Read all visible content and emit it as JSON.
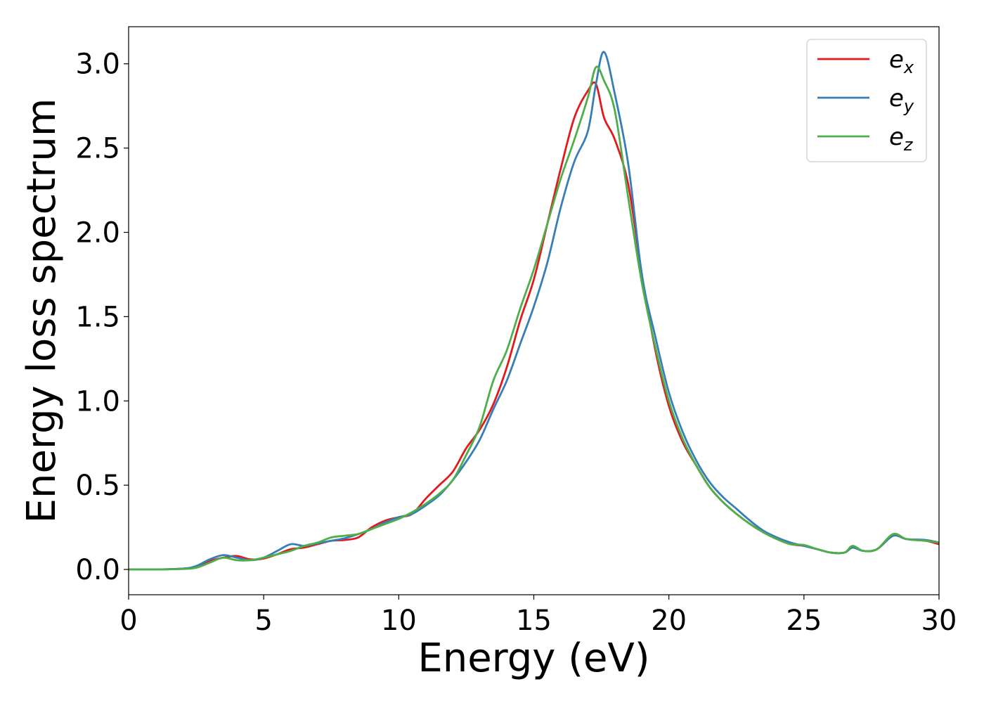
{
  "chart_data": {
    "type": "line",
    "title": "",
    "xlabel": "Energy (eV)",
    "ylabel": "Energy loss spectrum",
    "xlim": [
      0,
      30
    ],
    "ylim": [
      -0.15,
      3.22
    ],
    "xticks": [
      0,
      5,
      10,
      15,
      20,
      25,
      30
    ],
    "xtick_labels": [
      "0",
      "5",
      "10",
      "15",
      "20",
      "25",
      "30"
    ],
    "yticks": [
      0.0,
      0.5,
      1.0,
      1.5,
      2.0,
      2.5,
      3.0
    ],
    "ytick_labels": [
      "0.0",
      "0.5",
      "1.0",
      "1.5",
      "2.0",
      "2.5",
      "3.0"
    ],
    "grid": false,
    "legend_position": "top-right",
    "series": [
      {
        "name": "e_x",
        "label_base": "e",
        "label_sub": "x",
        "color": "#e31a1c",
        "points": [
          [
            0,
            0
          ],
          [
            1,
            0.0
          ],
          [
            2,
            0.005
          ],
          [
            2.5,
            0.015
          ],
          [
            3,
            0.05
          ],
          [
            3.5,
            0.07
          ],
          [
            4,
            0.08
          ],
          [
            4.5,
            0.06
          ],
          [
            5,
            0.065
          ],
          [
            5.5,
            0.09
          ],
          [
            6,
            0.12
          ],
          [
            6.5,
            0.13
          ],
          [
            7,
            0.15
          ],
          [
            7.5,
            0.17
          ],
          [
            8,
            0.175
          ],
          [
            8.5,
            0.19
          ],
          [
            9,
            0.25
          ],
          [
            9.5,
            0.29
          ],
          [
            10,
            0.31
          ],
          [
            10.5,
            0.33
          ],
          [
            11,
            0.42
          ],
          [
            11.5,
            0.5
          ],
          [
            12,
            0.58
          ],
          [
            12.5,
            0.72
          ],
          [
            13,
            0.83
          ],
          [
            13.5,
            0.98
          ],
          [
            14,
            1.2
          ],
          [
            14.5,
            1.48
          ],
          [
            15,
            1.72
          ],
          [
            15.5,
            2.05
          ],
          [
            16,
            2.38
          ],
          [
            16.5,
            2.68
          ],
          [
            17,
            2.84
          ],
          [
            17.3,
            2.88
          ],
          [
            17.6,
            2.68
          ],
          [
            18,
            2.55
          ],
          [
            18.5,
            2.28
          ],
          [
            19,
            1.75
          ],
          [
            19.5,
            1.3
          ],
          [
            20,
            0.97
          ],
          [
            20.5,
            0.76
          ],
          [
            21,
            0.62
          ],
          [
            21.5,
            0.49
          ],
          [
            22,
            0.4
          ],
          [
            22.5,
            0.33
          ],
          [
            23,
            0.27
          ],
          [
            23.5,
            0.22
          ],
          [
            24,
            0.18
          ],
          [
            24.5,
            0.15
          ],
          [
            25,
            0.14
          ],
          [
            25.5,
            0.12
          ],
          [
            26,
            0.1
          ],
          [
            26.5,
            0.1
          ],
          [
            26.8,
            0.13
          ],
          [
            27.2,
            0.11
          ],
          [
            27.7,
            0.12
          ],
          [
            28.3,
            0.2
          ],
          [
            28.8,
            0.18
          ],
          [
            29.5,
            0.17
          ],
          [
            30,
            0.15
          ]
        ]
      },
      {
        "name": "e_y",
        "label_base": "e",
        "label_sub": "y",
        "color": "#377eb8",
        "points": [
          [
            0,
            0
          ],
          [
            1,
            0.0
          ],
          [
            2,
            0.005
          ],
          [
            2.5,
            0.02
          ],
          [
            3,
            0.06
          ],
          [
            3.5,
            0.085
          ],
          [
            4,
            0.07
          ],
          [
            4.5,
            0.055
          ],
          [
            5,
            0.07
          ],
          [
            5.5,
            0.11
          ],
          [
            6,
            0.15
          ],
          [
            6.5,
            0.14
          ],
          [
            7,
            0.155
          ],
          [
            7.5,
            0.17
          ],
          [
            8,
            0.185
          ],
          [
            8.5,
            0.21
          ],
          [
            9,
            0.24
          ],
          [
            9.5,
            0.28
          ],
          [
            10,
            0.31
          ],
          [
            10.5,
            0.33
          ],
          [
            11,
            0.38
          ],
          [
            11.5,
            0.44
          ],
          [
            12,
            0.53
          ],
          [
            12.5,
            0.64
          ],
          [
            13,
            0.77
          ],
          [
            13.5,
            0.95
          ],
          [
            14,
            1.12
          ],
          [
            14.5,
            1.34
          ],
          [
            15,
            1.56
          ],
          [
            15.5,
            1.82
          ],
          [
            16,
            2.15
          ],
          [
            16.5,
            2.42
          ],
          [
            17,
            2.6
          ],
          [
            17.3,
            2.88
          ],
          [
            17.6,
            3.07
          ],
          [
            18,
            2.82
          ],
          [
            18.5,
            2.4
          ],
          [
            19,
            1.75
          ],
          [
            19.5,
            1.38
          ],
          [
            20,
            1.05
          ],
          [
            20.5,
            0.82
          ],
          [
            21,
            0.65
          ],
          [
            21.5,
            0.52
          ],
          [
            22,
            0.43
          ],
          [
            22.5,
            0.36
          ],
          [
            23,
            0.29
          ],
          [
            23.5,
            0.23
          ],
          [
            24,
            0.19
          ],
          [
            24.5,
            0.16
          ],
          [
            25,
            0.14
          ],
          [
            25.5,
            0.12
          ],
          [
            26,
            0.1
          ],
          [
            26.5,
            0.1
          ],
          [
            26.8,
            0.13
          ],
          [
            27.2,
            0.11
          ],
          [
            27.7,
            0.12
          ],
          [
            28.3,
            0.2
          ],
          [
            28.8,
            0.18
          ],
          [
            29.5,
            0.175
          ],
          [
            30,
            0.16
          ]
        ]
      },
      {
        "name": "e_z",
        "label_base": "e",
        "label_sub": "z",
        "color": "#4daf4a",
        "points": [
          [
            0,
            0
          ],
          [
            1,
            0.0
          ],
          [
            2,
            0.003
          ],
          [
            2.5,
            0.01
          ],
          [
            3,
            0.04
          ],
          [
            3.5,
            0.07
          ],
          [
            4,
            0.055
          ],
          [
            4.5,
            0.055
          ],
          [
            5,
            0.07
          ],
          [
            5.5,
            0.09
          ],
          [
            6,
            0.11
          ],
          [
            6.5,
            0.14
          ],
          [
            7,
            0.16
          ],
          [
            7.5,
            0.19
          ],
          [
            8,
            0.2
          ],
          [
            8.5,
            0.21
          ],
          [
            9,
            0.24
          ],
          [
            9.5,
            0.27
          ],
          [
            10,
            0.3
          ],
          [
            10.5,
            0.34
          ],
          [
            11,
            0.39
          ],
          [
            11.5,
            0.45
          ],
          [
            12,
            0.53
          ],
          [
            12.5,
            0.68
          ],
          [
            13,
            0.85
          ],
          [
            13.5,
            1.12
          ],
          [
            14,
            1.3
          ],
          [
            14.5,
            1.55
          ],
          [
            15,
            1.78
          ],
          [
            15.5,
            2.05
          ],
          [
            16,
            2.32
          ],
          [
            16.5,
            2.55
          ],
          [
            17,
            2.8
          ],
          [
            17.3,
            2.98
          ],
          [
            17.6,
            2.9
          ],
          [
            18,
            2.72
          ],
          [
            18.5,
            2.2
          ],
          [
            19,
            1.7
          ],
          [
            19.5,
            1.32
          ],
          [
            20,
            1.0
          ],
          [
            20.5,
            0.78
          ],
          [
            21,
            0.62
          ],
          [
            21.5,
            0.49
          ],
          [
            22,
            0.4
          ],
          [
            22.5,
            0.33
          ],
          [
            23,
            0.27
          ],
          [
            23.5,
            0.22
          ],
          [
            24,
            0.18
          ],
          [
            24.5,
            0.15
          ],
          [
            25,
            0.145
          ],
          [
            25.5,
            0.12
          ],
          [
            26,
            0.1
          ],
          [
            26.5,
            0.1
          ],
          [
            26.8,
            0.14
          ],
          [
            27.2,
            0.11
          ],
          [
            27.7,
            0.12
          ],
          [
            28.3,
            0.21
          ],
          [
            28.8,
            0.18
          ],
          [
            29.5,
            0.17
          ],
          [
            30,
            0.16
          ]
        ]
      }
    ]
  }
}
